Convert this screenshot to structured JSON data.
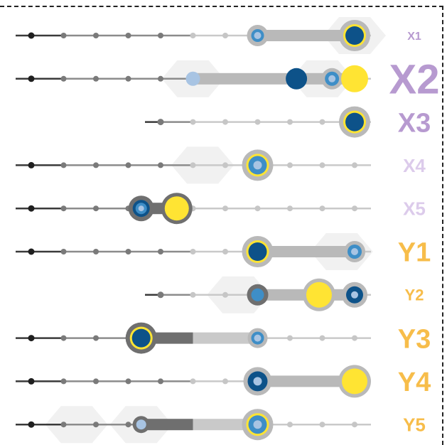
{
  "colors": {
    "purple": "#b79ad0",
    "lavender": "#dccbeb",
    "orange": "#f7bd4a",
    "navy": "#0d5289",
    "mid_blue": "#3e8ec7",
    "light_blue": "#a8c4e3",
    "yellow": "#ffe433",
    "ring_grey": "#b9b9b9",
    "dark_grey": "#6f6f6f",
    "track_light": "#c9c9c9",
    "track_mid": "#8c8c8c",
    "track_dark": "#3a3a3a",
    "hex_bg": "#f1f1f1"
  },
  "rows": [
    {
      "label": "X1",
      "label_color": "purple",
      "label_size": "small",
      "track_start": 0,
      "highlight": [
        7,
        10
      ],
      "highlight_shade": "light",
      "hexes": [
        10
      ],
      "markers": [
        {
          "pos": 7,
          "kind": "light-blue-in-grey"
        },
        {
          "pos": 10,
          "kind": "navy-yellow-ring"
        }
      ]
    },
    {
      "label": "X2",
      "label_color": "purple",
      "label_size": "xlarge",
      "track_start": 0,
      "highlight": [
        5,
        10
      ],
      "highlight_shade": "light",
      "hexes": [
        5,
        9
      ],
      "markers": [
        {
          "pos": 5,
          "kind": "light-blue-dot"
        },
        {
          "pos": 8.2,
          "kind": "navy-large"
        },
        {
          "pos": 9.3,
          "kind": "mid-blue-in-grey"
        },
        {
          "pos": 10,
          "kind": "yellow-large"
        }
      ]
    },
    {
      "label": "X3",
      "label_color": "purple",
      "label_size": "large",
      "track_start": 4,
      "highlight": null,
      "highlight_shade": "",
      "hexes": [],
      "markers": [
        {
          "pos": 10,
          "kind": "navy-yellow-ring"
        }
      ]
    },
    {
      "label": "X4",
      "label_color": "lavender",
      "label_size": "medium",
      "track_start": 0,
      "highlight": null,
      "highlight_shade": "",
      "hexes": [
        5.3
      ],
      "markers": [
        {
          "pos": 7,
          "kind": "mid-blue-yellow-ring"
        }
      ]
    },
    {
      "label": "X5",
      "label_color": "lavender",
      "label_size": "medium",
      "track_start": 0,
      "highlight": [
        3.4,
        4.5
      ],
      "highlight_shade": "dark",
      "hexes": [],
      "markers": [
        {
          "pos": 3.4,
          "kind": "mid-blue-dark-ring"
        },
        {
          "pos": 4.5,
          "kind": "yellow-dark-ring"
        }
      ]
    },
    {
      "label": "Y1",
      "label_color": "orange",
      "label_size": "large",
      "track_start": 0,
      "highlight": [
        7,
        10
      ],
      "highlight_shade": "light",
      "hexes": [
        9.6
      ],
      "markers": [
        {
          "pos": 7,
          "kind": "navy-yellow-ring"
        },
        {
          "pos": 10,
          "kind": "mid-blue-in-grey"
        }
      ]
    },
    {
      "label": "Y2",
      "label_color": "orange",
      "label_size": "small-medium",
      "track_start": 4,
      "highlight": [
        7,
        10
      ],
      "highlight_shade": "light",
      "hexes": [
        6.4
      ],
      "markers": [
        {
          "pos": 7,
          "kind": "mid-blue-dark-ring-small"
        },
        {
          "pos": 8.9,
          "kind": "yellow-in-grey"
        },
        {
          "pos": 10,
          "kind": "navy-in-grey"
        }
      ]
    },
    {
      "label": "Y3",
      "label_color": "orange",
      "label_size": "large",
      "track_start": 0,
      "highlight": [
        3.4,
        7
      ],
      "highlight_shade": "dark-fade",
      "hexes": [],
      "markers": [
        {
          "pos": 3.4,
          "kind": "navy-yellow-dark-ring"
        },
        {
          "pos": 7,
          "kind": "mid-blue-small-in-grey"
        }
      ]
    },
    {
      "label": "Y4",
      "label_color": "orange",
      "label_size": "large",
      "track_start": 0,
      "highlight": [
        7,
        10
      ],
      "highlight_shade": "light",
      "hexes": [],
      "markers": [
        {
          "pos": 7,
          "kind": "navy-in-grey-light"
        },
        {
          "pos": 10,
          "kind": "yellow-in-grey"
        }
      ]
    },
    {
      "label": "Y5",
      "label_color": "orange",
      "label_size": "medium",
      "track_start": 0,
      "highlight": [
        3.4,
        7
      ],
      "highlight_shade": "dark-fade",
      "hexes": [
        1.4,
        3.4
      ],
      "markers": [
        {
          "pos": 3.4,
          "kind": "light-blue-dark-ring"
        },
        {
          "pos": 7,
          "kind": "mid-blue-yellow-ring"
        }
      ]
    }
  ]
}
